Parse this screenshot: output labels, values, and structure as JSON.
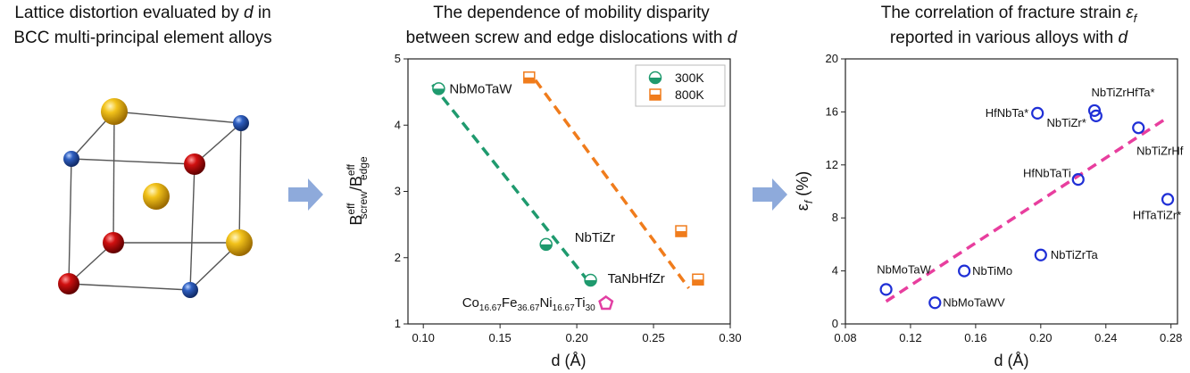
{
  "illustration": {
    "title_line1": [
      "Lattice distortion evaluated by",
      "d",
      "in"
    ],
    "title_line2": "BCC multi-principal element alloys"
  },
  "chart_data": [
    {
      "type": "scatter",
      "title": [
        [
          "The dependence of mobility disparity"
        ],
        [
          "between screw and edge dislocations with",
          "d"
        ]
      ],
      "xlabel": "d (Å)",
      "ylabel": [
        "B",
        "eff",
        "screw",
        "/B",
        "eff",
        "edge"
      ],
      "xlim": [
        0.09,
        0.3
      ],
      "xticks": [
        {
          "value": 0.1,
          "label": "0.10"
        },
        0.15,
        {
          "value": 0.2,
          "label": "0.20"
        },
        0.25,
        {
          "value": 0.3,
          "label": "0.30"
        }
      ],
      "ylim": [
        1,
        5
      ],
      "yticks": [
        1,
        2,
        3,
        4,
        5
      ],
      "legend": "upper right",
      "series": [
        {
          "name": "300K",
          "color": "#1f9a6e",
          "marker": "half-circle",
          "x": [
            0.11,
            0.18,
            0.209
          ],
          "values": [
            4.55,
            2.2,
            1.66
          ],
          "labels": [
            "NbMoTaW",
            "NbTiZr",
            "TaNbHfZr"
          ]
        },
        {
          "name": "800K",
          "color": "#f07c1c",
          "marker": "half-square",
          "x": [
            0.169,
            0.268,
            0.279
          ],
          "values": [
            4.72,
            2.4,
            1.67
          ]
        }
      ],
      "highlight": {
        "color": "#e23fa3",
        "x": 0.219,
        "value": 1.31,
        "label": [
          "Co",
          "16.67",
          "Fe",
          "36.67",
          "Ni",
          "16.67",
          "Ti",
          "30"
        ]
      },
      "fits": [
        {
          "color": "#1f9a6e",
          "x": [
            0.106,
            0.209
          ],
          "values": [
            4.61,
            1.6
          ]
        },
        {
          "color": "#f07c1c",
          "x": [
            0.173,
            0.273
          ],
          "values": [
            4.68,
            1.54
          ]
        }
      ]
    },
    {
      "type": "scatter",
      "title": [
        [
          "The correlation of fracture strain",
          "ε",
          "f"
        ],
        [
          "reported in various alloys with",
          "d"
        ]
      ],
      "xlabel": "d (Å)",
      "ylabel": [
        "ε",
        "f",
        "(%)"
      ],
      "xlim": [
        0.08,
        0.284
      ],
      "xticks": [
        0.08,
        0.12,
        0.16,
        {
          "value": 0.2,
          "label": "0.20"
        },
        0.24,
        0.28
      ],
      "ylim": [
        0,
        20
      ],
      "yticks": [
        0,
        4,
        8,
        12,
        16,
        20
      ],
      "series": [
        {
          "color": "#1f2fd6",
          "marker": "open-circle",
          "x": [
            0.105,
            0.135,
            0.153,
            0.2,
            0.223,
            0.198,
            0.233,
            0.234,
            0.26,
            0.278
          ],
          "values": [
            2.6,
            1.6,
            4.0,
            5.2,
            10.9,
            15.9,
            16.1,
            15.7,
            14.8,
            9.4
          ],
          "labels": [
            "NbMoTaW",
            "NbMoTaWV",
            "NbTiMo",
            "NbTiZrTa",
            "HfNbTaTi",
            "HfNbTa*",
            "NbTiZrHfTa*",
            "NbTiZr*",
            "NbTiZrHf",
            "HfTaTiZr*"
          ]
        }
      ],
      "fits": [
        {
          "color": "#e83e9e",
          "x": [
            0.105,
            0.277
          ],
          "values": [
            1.7,
            15.5
          ]
        }
      ]
    }
  ]
}
